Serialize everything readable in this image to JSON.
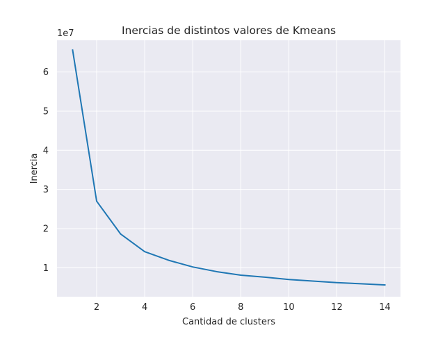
{
  "chart_data": {
    "type": "line",
    "title": "Inercias de distintos valores de Kmeans",
    "xlabel": "Cantidad de clusters",
    "ylabel": "Inercia",
    "y_offset_label": "1e7",
    "x": [
      1,
      2,
      3,
      4,
      5,
      6,
      7,
      8,
      9,
      10,
      11,
      12,
      13,
      14
    ],
    "series": [
      {
        "values": [
          65600000,
          27000000,
          18600000,
          14100000,
          11900000,
          10200000,
          9000000,
          8100000,
          7600000,
          7000000,
          6600000,
          6200000,
          5900000,
          5600000
        ]
      }
    ],
    "xlim": [
      0.35,
      14.65
    ],
    "ylim": [
      2600000,
      68100000
    ],
    "xticks": [
      2,
      4,
      6,
      8,
      10,
      12,
      14
    ],
    "xtick_labels": [
      "2",
      "4",
      "6",
      "8",
      "10",
      "12",
      "14"
    ],
    "yticks": [
      10000000,
      20000000,
      30000000,
      40000000,
      50000000,
      60000000
    ],
    "ytick_labels": [
      "1",
      "2",
      "3",
      "4",
      "5",
      "6"
    ],
    "grid": true,
    "colors": {
      "background": "#eaeaf2",
      "grid": "#ffffff",
      "line": "#1f77b4"
    }
  }
}
